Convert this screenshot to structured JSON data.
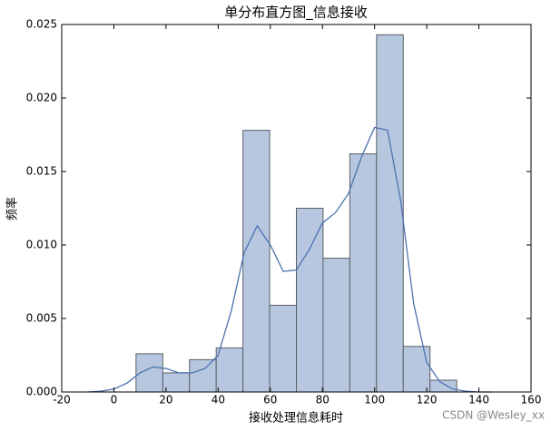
{
  "chart_data": {
    "type": "histogram",
    "title": "单分布直方图_信息接收",
    "xlabel": "接收处理信息耗时",
    "ylabel": "频率",
    "watermark": "CSDN @Wesley_xx",
    "bins": [
      8.5,
      18.75,
      29,
      39.25,
      49.5,
      59.75,
      70,
      80.25,
      90.5,
      100.75,
      111,
      121.25,
      131.5
    ],
    "values": [
      0.0026,
      0.0013,
      0.0022,
      0.003,
      0.0178,
      0.0059,
      0.0125,
      0.0091,
      0.0162,
      0.0243,
      0.0031,
      0.0008
    ],
    "color": "#b7c7df",
    "edgecolor": "#5a5f66",
    "kde": {
      "x": [
        -10,
        -5,
        0,
        5,
        10,
        15,
        20,
        25,
        30,
        35,
        40,
        45,
        50,
        55,
        60,
        65,
        70,
        75,
        80,
        85,
        90,
        95,
        100,
        105,
        110,
        115,
        120,
        125,
        130,
        135,
        140,
        145
      ],
      "values": [
        0,
        5e-05,
        0.0002,
        0.0006,
        0.0013,
        0.0017,
        0.0016,
        0.0013,
        0.0013,
        0.0016,
        0.0025,
        0.0055,
        0.0095,
        0.0113,
        0.01,
        0.0082,
        0.0083,
        0.0097,
        0.0115,
        0.0122,
        0.0135,
        0.016,
        0.018,
        0.0178,
        0.013,
        0.006,
        0.002,
        0.0007,
        0.0002,
        5e-05,
        0,
        0
      ],
      "color": "#4c72b0"
    },
    "xlim": [
      -20,
      160
    ],
    "xticks": [
      -20,
      0,
      20,
      40,
      60,
      80,
      100,
      120,
      140,
      160
    ],
    "ylim": [
      0,
      0.025
    ],
    "yticks": [
      {
        "value": 0,
        "label": "0.000"
      },
      {
        "value": 0.005,
        "label": "0.005"
      },
      {
        "value": 0.01,
        "label": "0.010"
      },
      {
        "value": 0.015,
        "label": "0.015"
      },
      {
        "value": 0.02,
        "label": "0.020"
      },
      {
        "value": 0.025,
        "label": "0.025"
      }
    ]
  }
}
